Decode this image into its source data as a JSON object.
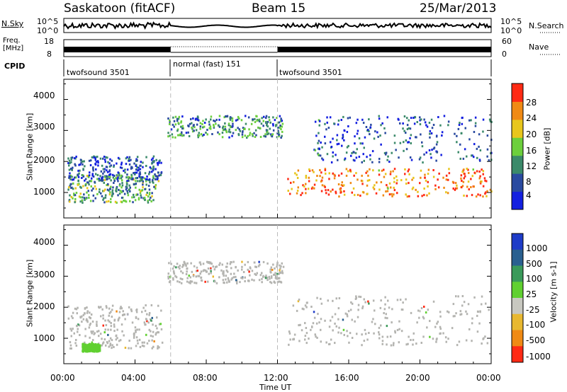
{
  "header": {
    "station": "Saskatoon (fitACF)",
    "beam": "Beam 15",
    "date": "25/Mar/2013"
  },
  "strips": {
    "nsky": {
      "label": "N.Sky",
      "tick_top": "10^5",
      "tick_bottom": "10^0"
    },
    "nsearch": {
      "label": "N.Search",
      "tick_top": "10^5",
      "tick_bottom": "10^0"
    },
    "freq": {
      "label_line1": "Freq.",
      "label_line2": "[MHz]",
      "tick_top": "18",
      "tick_bottom": "8"
    },
    "nave": {
      "label": "Nave",
      "tick_top": "60",
      "tick_bottom": "0"
    },
    "cpid": {
      "label": "CPID",
      "segments": [
        {
          "name": "twofsound 3501",
          "start": "00:00",
          "end": "06:00"
        },
        {
          "name": "normal (fast) 151",
          "start": "06:00",
          "end": "12:00"
        },
        {
          "name": "twofsound 3501",
          "start": "12:00",
          "end": "24:00"
        }
      ]
    }
  },
  "chart_data": [
    {
      "type": "heatmap",
      "title": "Power",
      "ylabel": "Slant Range [km]",
      "xlabel": "Time UT",
      "x_ticks": [
        "00:00",
        "04:00",
        "08:00",
        "12:00",
        "16:00",
        "20:00",
        "00:00"
      ],
      "xlim_hours": [
        0,
        24
      ],
      "y_ticks": [
        1000,
        2000,
        3000,
        4000
      ],
      "ylim": [
        180,
        4650
      ],
      "colorbar_label": "Power [dB]",
      "colorbar_ticks": [
        "4",
        "8",
        "12",
        "16",
        "20",
        "24",
        "28"
      ],
      "colorbar_range": [
        0,
        30
      ],
      "colors": [
        "#1420e0",
        "#2a4aa0",
        "#3b8a6a",
        "#6ccf3c",
        "#e8c61c",
        "#f08a14",
        "#ff2a14"
      ],
      "echo_regions": [
        {
          "region": "morning lower band",
          "t_start_h": 0.2,
          "t_end_h": 5.3,
          "range_km": [
            700,
            1600
          ],
          "power_db": 12
        },
        {
          "region": "morning upper band",
          "t_start_h": 0.2,
          "t_end_h": 5.5,
          "range_km": [
            1400,
            2200
          ],
          "power_db": 6
        },
        {
          "region": "daytime far band",
          "t_start_h": 5.8,
          "t_end_h": 12.3,
          "range_km": [
            2800,
            3500
          ],
          "power_db": 10
        },
        {
          "region": "evening strong band",
          "t_start_h": 12.5,
          "t_end_h": 24.0,
          "range_km": [
            900,
            1800
          ],
          "power_db": 24
        },
        {
          "region": "evening far band",
          "t_start_h": 14.0,
          "t_end_h": 24.0,
          "range_km": [
            2000,
            3500
          ],
          "power_db": 6
        }
      ]
    },
    {
      "type": "heatmap",
      "title": "Velocity",
      "ylabel": "Slant Range [km]",
      "xlabel": "Time UT",
      "x_ticks": [
        "00:00",
        "04:00",
        "08:00",
        "12:00",
        "16:00",
        "20:00",
        "00:00"
      ],
      "xlim_hours": [
        0,
        24
      ],
      "y_ticks": [
        1000,
        2000,
        3000,
        4000
      ],
      "ylim": [
        180,
        4650
      ],
      "colorbar_label": "Velocity [m s-1]",
      "colorbar_ticks": [
        "1000",
        "500",
        "100",
        "25",
        "-25",
        "-100",
        "-500",
        "-1000"
      ],
      "colors": [
        "#1e3cc8",
        "#2a6090",
        "#3a9a5a",
        "#60d030",
        "#c8c8c0",
        "#e8b830",
        "#f08a14",
        "#ff2a14"
      ],
      "ground_scatter_color": "#b4b4b0",
      "echo_regions": [
        {
          "region": "morning ground scatter",
          "t_start_h": 0.2,
          "t_end_h": 5.5,
          "range_km": [
            700,
            2100
          ],
          "velocity_ms": 0
        },
        {
          "region": "morning flow patch",
          "t_start_h": 1.0,
          "t_end_h": 2.0,
          "range_km": [
            600,
            850
          ],
          "velocity_ms": 150
        },
        {
          "region": "daytime ground scatter",
          "t_start_h": 5.8,
          "t_end_h": 12.3,
          "range_km": [
            2800,
            3500
          ],
          "velocity_ms": 0
        },
        {
          "region": "evening ground scatter",
          "t_start_h": 12.5,
          "t_end_h": 24.0,
          "range_km": [
            800,
            2400
          ],
          "velocity_ms": 0
        }
      ]
    }
  ]
}
